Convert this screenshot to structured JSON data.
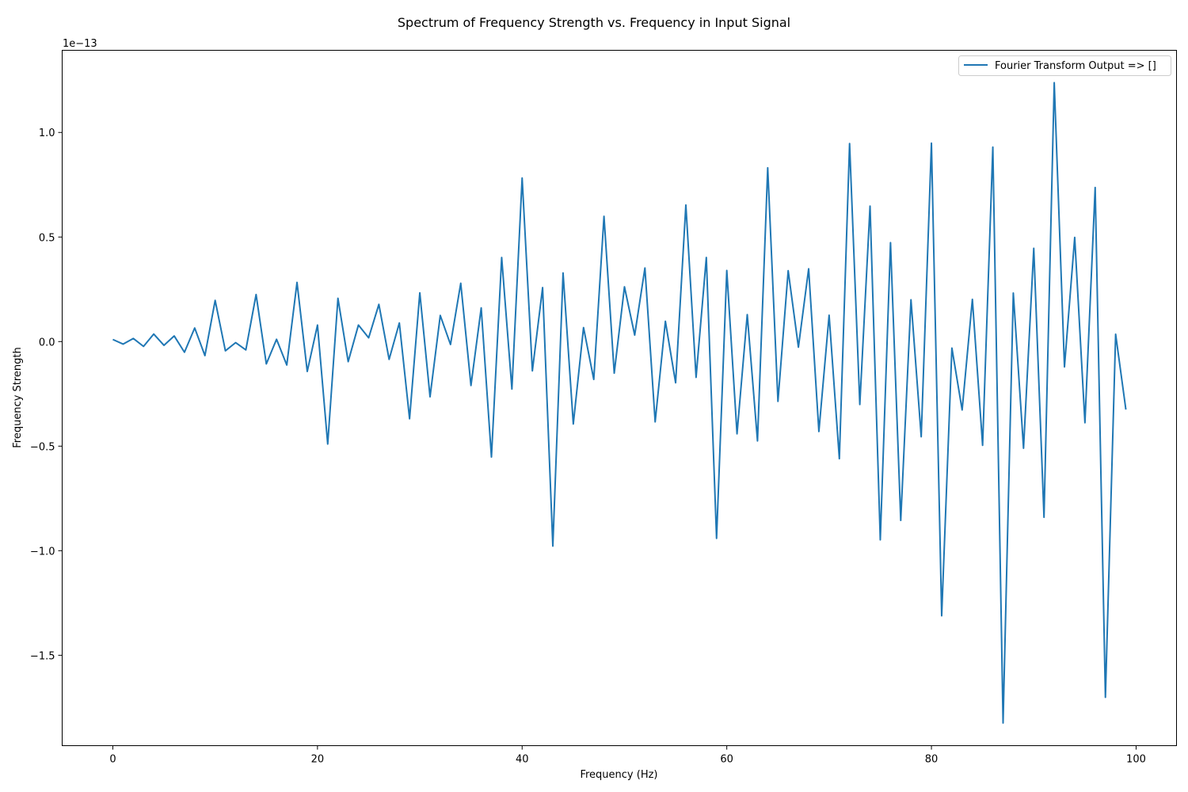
{
  "chart_data": {
    "type": "line",
    "title": "Spectrum of Frequency Strength vs. Frequency in Input Signal",
    "xlabel": "Frequency (Hz)",
    "ylabel": "Frequency Strength",
    "y_scale_label": "1e−13",
    "xlim": [
      -4.95,
      103.95
    ],
    "ylim": [
      -1.9323,
      1.3929
    ],
    "x_ticks": [
      0,
      20,
      40,
      60,
      80,
      100
    ],
    "x_tick_labels": [
      "0",
      "20",
      "40",
      "60",
      "80",
      "100"
    ],
    "y_ticks": [
      1.0,
      0.5,
      0.0,
      -0.5,
      -1.0,
      -1.5
    ],
    "y_tick_labels": [
      "1.0",
      "0.5",
      "0.0",
      "−0.5",
      "−1.0",
      "−1.5"
    ],
    "grid": false,
    "legend_position": "top-right",
    "line_color": "#1f77b4",
    "series": [
      {
        "name": "Fourier Transform Output => []",
        "x": [
          0,
          1,
          2,
          3,
          4,
          5,
          6,
          7,
          8,
          9,
          10,
          11,
          12,
          13,
          14,
          15,
          16,
          17,
          18,
          19,
          20,
          21,
          22,
          23,
          24,
          25,
          26,
          27,
          28,
          29,
          30,
          31,
          32,
          33,
          34,
          35,
          36,
          37,
          38,
          39,
          40,
          41,
          42,
          43,
          44,
          45,
          46,
          47,
          48,
          49,
          50,
          51,
          52,
          53,
          54,
          55,
          56,
          57,
          58,
          59,
          60,
          61,
          62,
          63,
          64,
          65,
          66,
          67,
          68,
          69,
          70,
          71,
          72,
          73,
          74,
          75,
          76,
          77,
          78,
          79,
          80,
          81,
          82,
          83,
          84,
          85,
          86,
          87,
          88,
          89,
          90,
          91,
          92,
          93,
          94,
          95,
          96,
          97,
          98,
          99
        ],
        "values": [
          0.01,
          -0.012,
          0.015,
          -0.023,
          0.036,
          -0.018,
          0.027,
          -0.051,
          0.065,
          -0.067,
          0.197,
          -0.044,
          -0.005,
          -0.04,
          0.225,
          -0.107,
          0.011,
          -0.112,
          0.283,
          -0.143,
          0.079,
          -0.49,
          0.207,
          -0.096,
          0.079,
          0.018,
          0.178,
          -0.085,
          0.089,
          -0.369,
          0.233,
          -0.264,
          0.125,
          -0.014,
          0.279,
          -0.21,
          0.161,
          -0.552,
          0.402,
          -0.227,
          0.782,
          -0.14,
          0.258,
          -0.978,
          0.328,
          -0.394,
          0.067,
          -0.181,
          0.599,
          -0.151,
          0.262,
          0.031,
          0.352,
          -0.384,
          0.097,
          -0.197,
          0.653,
          -0.171,
          0.402,
          -0.941,
          0.34,
          -0.441,
          0.129,
          -0.475,
          0.831,
          -0.286,
          0.339,
          -0.027,
          0.348,
          -0.43,
          0.126,
          -0.56,
          0.947,
          -0.301,
          0.648,
          -0.948,
          0.473,
          -0.855,
          0.2,
          -0.455,
          0.949,
          -1.311,
          -0.031,
          -0.327,
          0.202,
          -0.496,
          0.93,
          -1.824,
          0.232,
          -0.51,
          0.446,
          -0.84,
          1.238,
          -0.121,
          0.498,
          -0.388,
          0.737,
          -1.701,
          0.035,
          -0.325
        ]
      }
    ]
  }
}
